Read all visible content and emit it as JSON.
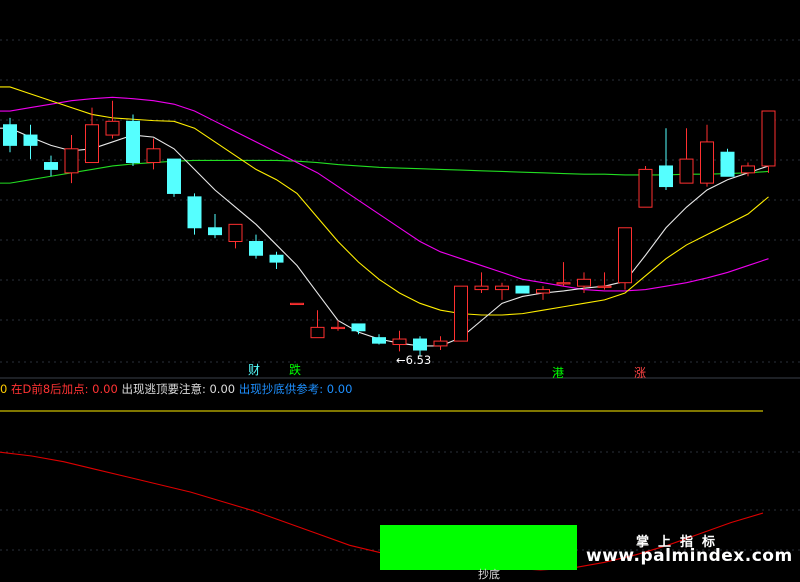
{
  "chart_data": {
    "type": "candlestick",
    "ylim": [
      6.3,
      11.6
    ],
    "candles": [
      {
        "o": 9.9,
        "c": 9.6,
        "h": 10.0,
        "l": 9.5
      },
      {
        "o": 9.75,
        "c": 9.6,
        "h": 9.9,
        "l": 9.4
      },
      {
        "o": 9.35,
        "c": 9.25,
        "h": 9.45,
        "l": 9.15
      },
      {
        "o": 9.2,
        "c": 9.55,
        "h": 9.75,
        "l": 9.05
      },
      {
        "o": 9.35,
        "c": 9.9,
        "h": 10.15,
        "l": 9.35
      },
      {
        "o": 9.75,
        "c": 9.95,
        "h": 10.25,
        "l": 9.7
      },
      {
        "o": 9.95,
        "c": 9.35,
        "h": 10.05,
        "l": 9.3
      },
      {
        "o": 9.35,
        "c": 9.55,
        "h": 9.7,
        "l": 9.25
      },
      {
        "o": 9.4,
        "c": 8.9,
        "h": 9.4,
        "l": 8.85
      },
      {
        "o": 8.85,
        "c": 8.4,
        "h": 8.9,
        "l": 8.3
      },
      {
        "o": 8.4,
        "c": 8.3,
        "h": 8.6,
        "l": 8.25
      },
      {
        "o": 8.2,
        "c": 8.45,
        "h": 8.45,
        "l": 8.1
      },
      {
        "o": 8.2,
        "c": 8.0,
        "h": 8.3,
        "l": 7.95
      },
      {
        "o": 8.0,
        "c": 7.9,
        "h": 8.05,
        "l": 7.8
      },
      {
        "o": 7.3,
        "c": 7.3,
        "h": 7.3,
        "l": 7.3
      },
      {
        "o": 6.8,
        "c": 6.95,
        "h": 7.2,
        "l": 6.8
      },
      {
        "o": 6.95,
        "c": 6.95,
        "h": 7.05,
        "l": 6.9
      },
      {
        "o": 7.0,
        "c": 6.9,
        "h": 7.0,
        "l": 6.85
      },
      {
        "o": 6.8,
        "c": 6.72,
        "h": 6.85,
        "l": 6.7
      },
      {
        "o": 6.7,
        "c": 6.78,
        "h": 6.9,
        "l": 6.6
      },
      {
        "o": 6.78,
        "c": 6.62,
        "h": 6.82,
        "l": 6.53
      },
      {
        "o": 6.68,
        "c": 6.75,
        "h": 6.82,
        "l": 6.62
      },
      {
        "o": 6.75,
        "c": 7.55,
        "h": 7.55,
        "l": 6.75
      },
      {
        "o": 7.5,
        "c": 7.55,
        "h": 7.75,
        "l": 7.45
      },
      {
        "o": 7.5,
        "c": 7.55,
        "h": 7.6,
        "l": 7.35
      },
      {
        "o": 7.55,
        "c": 7.45,
        "h": 7.55,
        "l": 7.45
      },
      {
        "o": 7.45,
        "c": 7.5,
        "h": 7.55,
        "l": 7.35
      },
      {
        "o": 7.6,
        "c": 7.6,
        "h": 7.9,
        "l": 7.55
      },
      {
        "o": 7.55,
        "c": 7.65,
        "h": 7.75,
        "l": 7.45
      },
      {
        "o": 7.55,
        "c": 7.55,
        "h": 7.75,
        "l": 7.5
      },
      {
        "o": 7.6,
        "c": 8.4,
        "h": 8.4,
        "l": 7.5
      },
      {
        "o": 8.7,
        "c": 9.25,
        "h": 9.3,
        "l": 8.7
      },
      {
        "o": 9.3,
        "c": 9.0,
        "h": 9.85,
        "l": 8.95
      },
      {
        "o": 9.05,
        "c": 9.4,
        "h": 9.85,
        "l": 9.05
      },
      {
        "o": 9.05,
        "c": 9.65,
        "h": 9.9,
        "l": 9.0
      },
      {
        "o": 9.5,
        "c": 9.15,
        "h": 9.55,
        "l": 9.15
      },
      {
        "o": 9.2,
        "c": 9.3,
        "h": 9.35,
        "l": 9.15
      },
      {
        "o": 9.3,
        "c": 10.1,
        "h": 10.1,
        "l": 9.2
      }
    ],
    "ma_white": [
      9.85,
      9.72,
      9.6,
      9.52,
      9.55,
      9.65,
      9.75,
      9.72,
      9.55,
      9.25,
      8.95,
      8.7,
      8.45,
      8.15,
      7.85,
      7.45,
      7.05,
      6.88,
      6.78,
      6.72,
      6.68,
      6.68,
      6.8,
      7.05,
      7.3,
      7.4,
      7.45,
      7.48,
      7.52,
      7.55,
      7.62,
      8.0,
      8.4,
      8.7,
      8.95,
      9.1,
      9.2,
      9.3
    ],
    "ma_yellow": [
      10.45,
      10.35,
      10.25,
      10.15,
      10.05,
      10.0,
      9.98,
      9.96,
      9.95,
      9.85,
      9.65,
      9.45,
      9.25,
      9.1,
      8.9,
      8.55,
      8.2,
      7.9,
      7.65,
      7.45,
      7.3,
      7.2,
      7.15,
      7.13,
      7.13,
      7.15,
      7.2,
      7.25,
      7.3,
      7.35,
      7.45,
      7.7,
      7.95,
      8.15,
      8.3,
      8.45,
      8.6,
      8.85
    ],
    "ma_magenta": [
      10.1,
      10.15,
      10.2,
      10.25,
      10.28,
      10.3,
      10.28,
      10.25,
      10.2,
      10.1,
      9.95,
      9.8,
      9.65,
      9.5,
      9.35,
      9.2,
      9.0,
      8.8,
      8.6,
      8.4,
      8.2,
      8.05,
      7.95,
      7.85,
      7.75,
      7.65,
      7.6,
      7.55,
      7.5,
      7.48,
      7.48,
      7.5,
      7.55,
      7.6,
      7.67,
      7.75,
      7.85,
      7.95
    ],
    "ma_green": [
      9.05,
      9.1,
      9.15,
      9.2,
      9.25,
      9.3,
      9.33,
      9.35,
      9.37,
      9.38,
      9.38,
      9.38,
      9.38,
      9.38,
      9.37,
      9.35,
      9.32,
      9.3,
      9.28,
      9.27,
      9.26,
      9.25,
      9.24,
      9.23,
      9.22,
      9.21,
      9.2,
      9.19,
      9.18,
      9.18,
      9.17,
      9.17,
      9.17,
      9.18,
      9.18,
      9.19,
      9.2,
      9.22
    ],
    "price_annotation": "←6.53",
    "event_labels": [
      "财",
      "跌",
      "港",
      "涨"
    ],
    "lower_series": [
      0.62,
      0.6,
      0.57,
      0.53,
      0.49,
      0.45,
      0.41,
      0.36,
      0.31,
      0.25,
      0.19,
      0.13,
      0.09,
      0.06,
      0.04,
      0.02,
      0.01,
      0.0,
      0.01,
      0.04,
      0.08,
      0.13,
      0.19,
      0.25,
      0.3
    ]
  },
  "indicator_row": [
    {
      "text": "0",
      "color": "#ffcc00"
    },
    {
      "text": "  在D前8后加点: 0.00",
      "color": "#ff3333"
    },
    {
      "text": "  出现逃顶要注意: 0.00",
      "color": "#dcdcdc"
    },
    {
      "text": "  出现抄底供参考: 0.00",
      "color": "#1e90ff"
    }
  ],
  "bottom_label": "抄底",
  "watermark": {
    "title": "掌上指标",
    "url": "www.palmindex.com"
  },
  "colors": {
    "up": "#ff3030",
    "down": "#55ffff",
    "ma_white": "#e8e8e8",
    "ma_yellow": "#ffee00",
    "ma_magenta": "#ee00ee",
    "ma_green": "#22dd22",
    "lower_line": "#dd0000",
    "ref_line": "#ffee00"
  }
}
